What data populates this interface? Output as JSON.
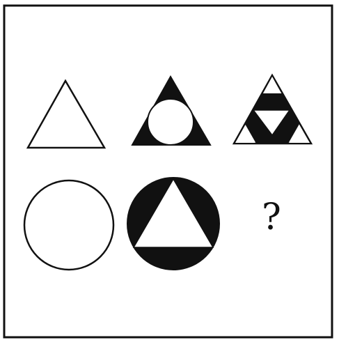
{
  "puzzle": {
    "question_mark": "?"
  },
  "colors": {
    "ink": "#111111",
    "paper": "#ffffff"
  },
  "figures": [
    {
      "row": 1,
      "col": 1,
      "shape": "triangle",
      "fill": "white"
    },
    {
      "row": 1,
      "col": 2,
      "shape": "triangle-with-inscribed-circle",
      "fill": "black-corners"
    },
    {
      "row": 1,
      "col": 3,
      "shape": "triangle-with-inscribed-inverted-triangle",
      "fill": "black-band"
    },
    {
      "row": 2,
      "col": 1,
      "shape": "circle",
      "fill": "white"
    },
    {
      "row": 2,
      "col": 2,
      "shape": "circle-with-inscribed-triangle",
      "fill": "black-segments"
    },
    {
      "row": 2,
      "col": 3,
      "shape": "unknown",
      "fill": "none"
    }
  ]
}
